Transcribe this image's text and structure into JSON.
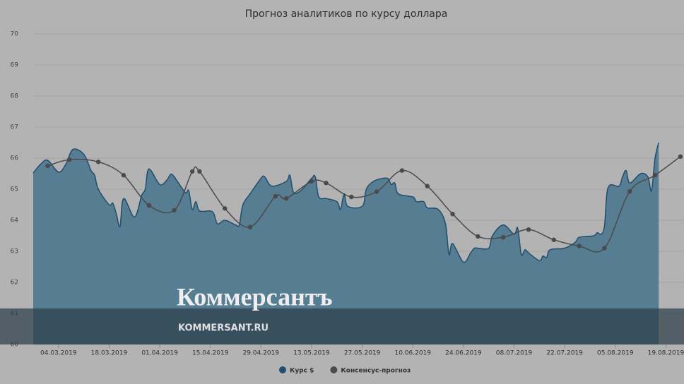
{
  "chart_data": {
    "type": "area-line",
    "title": "Прогноз аналитиков по курсу доллара",
    "ylim": [
      60,
      70
    ],
    "yticks": [
      60,
      61,
      62,
      63,
      64,
      65,
      66,
      67,
      68,
      69,
      70
    ],
    "grid": true,
    "xlim": [
      "25.02.2019",
      "24.08.2019"
    ],
    "xticks": [
      "04.03.2019",
      "18.03.2019",
      "01.04.2019",
      "15.04.2019",
      "29.04.2019",
      "13.05.2019",
      "27.05.2019",
      "10.06.2019",
      "24.06.2019",
      "08.07.2019",
      "22.07.2019",
      "05.08.2019",
      "19.08.2019"
    ],
    "legend": "bottom",
    "series": [
      {
        "name": "Курс $",
        "color": "#1f4e6e",
        "kind": "area",
        "x": [
          "25.02.2019",
          "27.02.2019",
          "01.03.2019",
          "04.03.2019",
          "06.03.2019",
          "08.03.2019",
          "11.03.2019",
          "13.03.2019",
          "14.03.2019",
          "15.03.2019",
          "18.03.2019",
          "19.03.2019",
          "20.03.2019",
          "21.03.2019",
          "22.03.2019",
          "25.03.2019",
          "27.03.2019",
          "28.03.2019",
          "29.03.2019",
          "01.04.2019",
          "03.04.2019",
          "04.04.2019",
          "05.04.2019",
          "08.04.2019",
          "09.04.2019",
          "10.04.2019",
          "11.04.2019",
          "12.04.2019",
          "15.04.2019",
          "16.04.2019",
          "17.04.2019",
          "19.04.2019",
          "22.04.2019",
          "23.04.2019",
          "24.04.2019",
          "26.04.2019",
          "29.04.2019",
          "30.04.2019",
          "02.05.2019",
          "06.05.2019",
          "07.05.2019",
          "08.05.2019",
          "10.05.2019",
          "13.05.2019",
          "14.05.2019",
          "15.05.2019",
          "17.05.2019",
          "20.05.2019",
          "21.05.2019",
          "22.05.2019",
          "23.05.2019",
          "27.05.2019",
          "28.05.2019",
          "29.05.2019",
          "31.05.2019",
          "03.06.2019",
          "04.06.2019",
          "05.06.2019",
          "06.06.2019",
          "10.06.2019",
          "11.06.2019",
          "13.06.2019",
          "14.06.2019",
          "17.06.2019",
          "19.06.2019",
          "20.06.2019",
          "21.06.2019",
          "24.06.2019",
          "26.06.2019",
          "27.06.2019",
          "28.06.2019",
          "01.07.2019",
          "02.07.2019",
          "05.07.2019",
          "08.07.2019",
          "09.07.2019",
          "10.07.2019",
          "11.07.2019",
          "12.07.2019",
          "15.07.2019",
          "16.07.2019",
          "17.07.2019",
          "18.07.2019",
          "22.07.2019",
          "25.07.2019",
          "26.07.2019",
          "30.07.2019",
          "31.07.2019",
          "01.08.2019",
          "02.08.2019",
          "03.08.2019",
          "06.08.2019",
          "07.08.2019",
          "08.08.2019",
          "09.08.2019",
          "12.08.2019",
          "14.08.2019",
          "15.08.2019",
          "16.08.2019",
          "17.08.2019"
        ],
        "values": [
          65.52,
          65.8,
          65.93,
          65.55,
          65.8,
          66.28,
          66.12,
          65.6,
          65.45,
          65.0,
          64.5,
          64.55,
          64.2,
          63.8,
          64.7,
          64.1,
          64.8,
          65.0,
          65.65,
          65.15,
          65.3,
          65.48,
          65.4,
          64.9,
          64.95,
          64.35,
          64.6,
          64.3,
          64.3,
          64.2,
          63.88,
          64.0,
          63.85,
          63.85,
          64.5,
          64.85,
          65.35,
          65.4,
          65.1,
          65.25,
          65.45,
          64.9,
          64.95,
          65.35,
          65.4,
          64.75,
          64.7,
          64.6,
          64.35,
          64.85,
          64.45,
          64.45,
          64.95,
          65.15,
          65.3,
          65.35,
          65.15,
          65.2,
          64.85,
          64.75,
          64.6,
          64.6,
          64.4,
          64.35,
          63.9,
          62.9,
          63.25,
          62.65,
          62.95,
          63.1,
          63.1,
          63.1,
          63.5,
          63.85,
          63.55,
          63.75,
          62.9,
          63.05,
          62.95,
          62.7,
          62.85,
          62.8,
          63.05,
          63.1,
          63.3,
          63.45,
          63.5,
          63.6,
          63.55,
          63.8,
          65.05,
          65.1,
          65.4,
          65.6,
          65.2,
          65.5,
          65.4,
          64.95,
          66.0,
          66.5
        ]
      },
      {
        "name": "Консенсус-прогноз",
        "color": "#4a4a4a",
        "kind": "line",
        "x": [
          "01.03.2019",
          "07.03.2019",
          "15.03.2019",
          "22.03.2019",
          "29.03.2019",
          "05.04.2019",
          "10.04.2019",
          "12.04.2019",
          "19.04.2019",
          "26.04.2019",
          "03.05.2019",
          "06.05.2019",
          "13.05.2019",
          "17.05.2019",
          "24.05.2019",
          "31.05.2019",
          "07.06.2019",
          "14.06.2019",
          "21.06.2019",
          "28.06.2019",
          "05.07.2019",
          "12.07.2019",
          "19.07.2019",
          "26.07.2019",
          "02.08.2019",
          "09.08.2019",
          "16.08.2019",
          "23.08.2019"
        ],
        "values": [
          65.75,
          65.95,
          65.88,
          65.45,
          64.48,
          64.32,
          65.57,
          65.57,
          64.38,
          63.78,
          64.77,
          64.7,
          65.25,
          65.2,
          64.75,
          64.92,
          65.6,
          65.1,
          64.2,
          63.48,
          63.45,
          63.7,
          63.37,
          63.17,
          63.1,
          64.93,
          65.45,
          66.05
        ]
      }
    ],
    "watermark": {
      "brand": "Коммерсантъ",
      "site": "KOMMERSANT.RU"
    }
  }
}
